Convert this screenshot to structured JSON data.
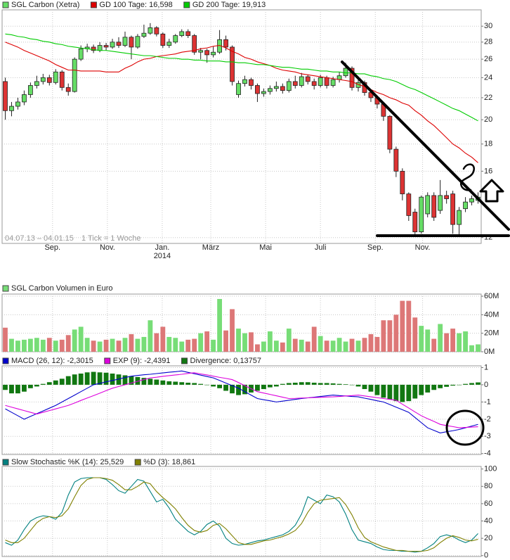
{
  "chart_data": [
    {
      "type": "candlestick",
      "log_scale": true,
      "grid": true,
      "xlim": [
        -0.5,
        75.5
      ],
      "xticks": [
        {
          "value": 7.5,
          "label": "Sep."
        },
        {
          "value": 16.2,
          "label": "Nov."
        },
        {
          "value": 24.9,
          "label": "Jan."
        },
        {
          "value": 32.6,
          "label": "März"
        },
        {
          "value": 41.3,
          "label": "Mai"
        },
        {
          "value": 50.0,
          "label": "Juli"
        },
        {
          "value": 58.7,
          "label": "Sep."
        },
        {
          "value": 66.2,
          "label": "Nov."
        }
      ],
      "year_labels": [
        {
          "value": 24.9,
          "label": "2014"
        }
      ],
      "range_note": "04.07.13 – 04.01.15",
      "tick_note": "1 Tick = 1 Woche",
      "ylim": [
        11.7,
        32.2
      ],
      "yticks": [
        12,
        16,
        18,
        20,
        22,
        24,
        26,
        28,
        30
      ],
      "series": [
        {
          "name": "SGL Carbon (Xetra)",
          "style": "candle",
          "color": "#66dd66",
          "down_color": "#dd3333",
          "open": [
            23.6,
            20.8,
            21.2,
            21.6,
            22.3,
            23.2,
            23.6,
            24.0,
            23.5,
            24.6,
            23.0,
            22.6,
            26.0,
            27.2,
            27.4,
            27.0,
            27.6,
            27.4,
            28.0,
            27.6,
            28.6,
            27.4,
            28.7,
            29.1,
            29.8,
            29.0,
            27.6,
            28.0,
            28.8,
            29.3,
            28.8,
            26.8,
            27.0,
            26.5,
            26.8,
            28.3,
            27.4,
            22.3,
            23.4,
            23.8,
            23.2,
            22.4,
            22.6,
            22.9,
            23.1,
            22.7,
            23.6,
            23.2,
            24.1,
            23.6,
            23.2,
            24.0,
            23.2,
            23.8,
            24.2,
            25.0,
            23.0,
            23.5,
            22.5,
            22.0,
            21.4,
            20.3,
            17.6,
            16.0,
            14.5,
            13.4,
            12.3,
            13.3,
            14.4,
            13.5,
            14.4,
            14.5,
            12.7,
            13.6,
            14.0,
            14.1
          ],
          "high": [
            24.0,
            21.6,
            22.0,
            22.7,
            23.5,
            24.2,
            24.4,
            24.3,
            24.9,
            24.8,
            23.4,
            26.2,
            27.6,
            27.8,
            27.7,
            28.0,
            27.9,
            28.4,
            28.6,
            29.3,
            28.8,
            29.0,
            30.2,
            30.4,
            30.0,
            29.2,
            28.4,
            29.0,
            29.6,
            29.6,
            29.0,
            27.3,
            27.2,
            27.5,
            29.5,
            28.8,
            27.6,
            23.7,
            24.2,
            24.0,
            23.4,
            22.9,
            23.2,
            23.6,
            23.4,
            23.9,
            24.2,
            24.5,
            24.3,
            23.9,
            24.3,
            24.2,
            24.1,
            24.6,
            25.6,
            25.2,
            23.8,
            23.7,
            22.8,
            22.2,
            21.6,
            20.4,
            17.8,
            16.2,
            14.6,
            13.6,
            14.4,
            14.6,
            14.6,
            15.4,
            14.7,
            14.7,
            13.7,
            14.3,
            14.4,
            14.6
          ],
          "low": [
            20.0,
            20.3,
            20.9,
            21.3,
            22.0,
            22.9,
            23.3,
            23.2,
            23.3,
            22.7,
            22.2,
            22.5,
            25.8,
            26.8,
            26.7,
            26.8,
            27.0,
            27.2,
            27.3,
            27.4,
            26.0,
            27.2,
            28.5,
            28.9,
            28.7,
            27.3,
            27.3,
            27.8,
            28.6,
            28.5,
            26.5,
            26.0,
            25.6,
            26.2,
            26.6,
            27.0,
            23.2,
            22.0,
            23.1,
            22.8,
            21.6,
            22.1,
            22.3,
            22.6,
            22.4,
            22.5,
            22.9,
            23.0,
            23.3,
            22.8,
            23.0,
            22.9,
            23.0,
            23.5,
            24.0,
            22.7,
            22.6,
            22.2,
            21.6,
            21.0,
            19.9,
            17.3,
            15.6,
            14.1,
            12.9,
            12.1,
            12.2,
            13.1,
            12.9,
            13.3,
            13.9,
            12.2,
            12.1,
            13.4,
            13.8,
            13.9
          ],
          "close": [
            20.8,
            21.2,
            21.6,
            22.3,
            23.2,
            23.6,
            24.0,
            23.5,
            24.6,
            23.0,
            22.6,
            26.0,
            27.2,
            27.4,
            27.0,
            27.6,
            27.4,
            28.0,
            27.6,
            28.6,
            27.4,
            28.7,
            29.1,
            29.8,
            29.0,
            27.6,
            28.0,
            28.8,
            29.3,
            28.8,
            26.8,
            27.0,
            26.5,
            26.8,
            28.3,
            27.4,
            23.6,
            23.4,
            23.8,
            23.2,
            22.4,
            22.6,
            22.9,
            23.1,
            22.7,
            23.6,
            23.2,
            24.1,
            23.6,
            23.2,
            24.0,
            23.2,
            23.8,
            24.2,
            25.0,
            23.0,
            23.5,
            22.5,
            22.0,
            21.4,
            20.3,
            17.6,
            16.0,
            14.5,
            13.2,
            12.3,
            14.3,
            14.4,
            13.1,
            14.4,
            14.2,
            12.7,
            13.5,
            14.0,
            14.2,
            14.3
          ]
        },
        {
          "name": "GD 100 Tage: 16,598",
          "style": "line",
          "color": "#dd0000",
          "values": [
            28.0,
            27.7,
            27.4,
            27.0,
            26.7,
            26.4,
            26.1,
            25.8,
            25.4,
            25.1,
            24.8,
            24.8,
            24.7,
            24.7,
            24.7,
            24.7,
            24.6,
            24.6,
            24.6,
            25.0,
            25.3,
            25.7,
            26.0,
            26.1,
            26.3,
            26.4,
            26.5,
            26.6,
            26.8,
            26.9,
            27.0,
            27.2,
            27.3,
            27.5,
            27.6,
            27.3,
            26.9,
            26.6,
            26.2,
            26.0,
            25.7,
            25.5,
            25.3,
            25.0,
            24.8,
            24.7,
            24.6,
            24.4,
            24.3,
            24.2,
            24.1,
            24.0,
            23.9,
            23.8,
            23.7,
            23.6,
            23.3,
            23.1,
            22.8,
            22.5,
            22.3,
            22.0,
            21.8,
            21.5,
            21.3,
            20.8,
            20.4,
            19.9,
            19.5,
            19.0,
            18.5,
            18.0,
            17.7,
            17.3,
            17.0,
            16.6
          ]
        },
        {
          "name": "GD 200 Tage: 19,913",
          "style": "line",
          "color": "#00cc00",
          "values": [
            29.0,
            28.9,
            28.7,
            28.6,
            28.4,
            28.3,
            28.1,
            28.0,
            27.8,
            27.7,
            27.5,
            27.4,
            27.3,
            27.2,
            27.1,
            27.0,
            27.0,
            26.9,
            26.8,
            26.7,
            26.6,
            26.5,
            26.4,
            26.4,
            26.3,
            26.2,
            26.1,
            26.1,
            26.0,
            26.0,
            25.9,
            25.9,
            25.8,
            25.8,
            25.8,
            25.7,
            25.7,
            25.6,
            25.6,
            25.5,
            25.4,
            25.4,
            25.3,
            25.2,
            25.1,
            25.1,
            25.0,
            24.9,
            24.9,
            24.8,
            24.7,
            24.7,
            24.6,
            24.6,
            24.5,
            24.5,
            24.4,
            24.4,
            24.2,
            24.1,
            23.9,
            23.8,
            23.6,
            23.3,
            23.0,
            22.8,
            22.5,
            22.2,
            21.9,
            21.6,
            21.3,
            21.0,
            20.8,
            20.5,
            20.2,
            19.9
          ]
        }
      ]
    },
    {
      "type": "bar",
      "grid": true,
      "xlim": [
        -0.5,
        75.5
      ],
      "ylim": [
        0,
        62.3
      ],
      "yticks": [
        {
          "value": 0,
          "label": "0M"
        },
        {
          "value": 20,
          "label": "20M"
        },
        {
          "value": 40,
          "label": "40M"
        },
        {
          "value": 60,
          "label": "60M"
        }
      ],
      "series": [
        {
          "name": "SGL Carbon Volumen in Euro",
          "style": "bar",
          "color": "#77dd77",
          "down_color": "#dd7777",
          "values": [
            26,
            14,
            12,
            13,
            14,
            15,
            13,
            15,
            12,
            13,
            18,
            24,
            27,
            15,
            12,
            11,
            13,
            14,
            12,
            15,
            19,
            14,
            16,
            34,
            20,
            27,
            16,
            15,
            11,
            13,
            14,
            20,
            22,
            13,
            57,
            23,
            46,
            25,
            20,
            21,
            8,
            11,
            22,
            12,
            10,
            25,
            14,
            13,
            11,
            27,
            17,
            12,
            12,
            15,
            11,
            14,
            12,
            15,
            19,
            16,
            34,
            34,
            40,
            55,
            55,
            37,
            28,
            24,
            14,
            30,
            20,
            25,
            20,
            22,
            7,
            8
          ]
        }
      ]
    },
    {
      "type": "line",
      "grid": true,
      "xlim": [
        -0.5,
        75.5
      ],
      "ylim": [
        -4.05,
        1.1
      ],
      "yticks": [
        -4,
        -3,
        -2,
        -1,
        0,
        1
      ],
      "series": [
        {
          "name": "MACD (26, 12): -2,3015",
          "style": "line",
          "color": "#0000cc",
          "values": [
            -1.4,
            -1.6,
            -1.8,
            -2.0,
            -1.84,
            -1.68,
            -1.52,
            -1.36,
            -1.2,
            -1.0,
            -0.8,
            -0.6,
            -0.4,
            -0.2,
            0,
            0.08,
            0.17,
            0.25,
            0.33,
            0.42,
            0.5,
            0.54,
            0.58,
            0.61,
            0.65,
            0.69,
            0.73,
            0.76,
            0.8,
            0.72,
            0.64,
            0.56,
            0.48,
            0.4,
            0.25,
            0.1,
            -0.05,
            -0.2,
            -0.4,
            -0.6,
            -0.8,
            -0.87,
            -0.93,
            -1.0,
            -0.95,
            -0.9,
            -0.85,
            -0.8,
            -0.76,
            -0.72,
            -0.68,
            -0.64,
            -0.6,
            -0.63,
            -0.65,
            -0.68,
            -0.7,
            -0.78,
            -0.85,
            -0.93,
            -1.0,
            -1.15,
            -1.3,
            -1.45,
            -1.6,
            -1.9,
            -2.2,
            -2.5,
            -2.65,
            -2.8,
            -2.73,
            -2.67,
            -2.6,
            -2.5,
            -2.4,
            -2.3015
          ]
        },
        {
          "name": "EXP (9): -2,4391",
          "style": "line",
          "color": "#dd00dd",
          "values": [
            -1.2,
            -1.3,
            -1.4,
            -1.5,
            -1.6,
            -1.7,
            -1.6,
            -1.5,
            -1.4,
            -1.3,
            -1.2,
            -1.06,
            -0.91,
            -0.77,
            -0.63,
            -0.49,
            -0.34,
            -0.2,
            -0.1,
            0,
            0.1,
            0.2,
            0.3,
            0.4,
            0.44,
            0.49,
            0.53,
            0.57,
            0.61,
            0.66,
            0.7,
            0.63,
            0.57,
            0.5,
            0.43,
            0.37,
            0.3,
            0.13,
            -0.05,
            -0.23,
            -0.4,
            -0.48,
            -0.56,
            -0.64,
            -0.72,
            -0.8,
            -0.79,
            -0.77,
            -0.76,
            -0.74,
            -0.73,
            -0.71,
            -0.7,
            -0.68,
            -0.65,
            -0.63,
            -0.6,
            -0.65,
            -0.7,
            -0.75,
            -0.8,
            -0.85,
            -0.9,
            -1.13,
            -1.35,
            -1.58,
            -1.8,
            -1.97,
            -2.13,
            -2.3,
            -2.37,
            -2.43,
            -2.5,
            -2.48,
            -2.46,
            -2.4391
          ]
        },
        {
          "name": "Divergence: 0,13757",
          "style": "bar",
          "color": "#117711",
          "values": [
            -0.3,
            -0.5,
            -0.5,
            -0.4,
            -0.2,
            -0.1,
            0.05,
            0.15,
            0.25,
            0.35,
            0.5,
            0.6,
            0.65,
            0.72,
            0.75,
            0.72,
            0.7,
            0.65,
            0.6,
            0.55,
            0.5,
            0.45,
            0.4,
            0.35,
            0.3,
            0.25,
            0.2,
            0.18,
            0.15,
            0.12,
            0.1,
            0.05,
            0,
            -0.1,
            -0.2,
            -0.35,
            -0.5,
            -0.6,
            -0.55,
            -0.45,
            -0.35,
            -0.25,
            -0.15,
            -0.1,
            0.05,
            0.1,
            0.12,
            0.15,
            0.15,
            0.12,
            0.1,
            0.1,
            0.08,
            0.05,
            0.03,
            0,
            -0.1,
            -0.25,
            -0.4,
            -0.6,
            -0.75,
            -0.85,
            -0.95,
            -1.0,
            -0.95,
            -0.8,
            -0.6,
            -0.45,
            -0.3,
            -0.2,
            -0.12,
            -0.05,
            0,
            0.05,
            0.1,
            0.13757
          ]
        }
      ]
    },
    {
      "type": "line",
      "grid": true,
      "xlim": [
        -0.5,
        75.5
      ],
      "ylim": [
        -1,
        103
      ],
      "yticks": [
        0,
        20,
        40,
        60,
        80,
        100
      ],
      "series": [
        {
          "name": "Slow Stochastic %K (14): 25,529",
          "style": "line",
          "color": "#008080",
          "values": [
            15,
            12,
            18,
            30,
            40,
            44,
            46,
            45,
            42,
            50,
            70,
            85,
            89,
            90,
            90,
            90,
            88,
            82,
            75,
            72,
            80,
            88,
            86,
            74,
            62,
            65,
            55,
            42,
            35,
            28,
            24,
            28,
            36,
            40,
            34,
            20,
            14,
            12,
            13,
            15,
            17,
            18,
            20,
            22,
            24,
            28,
            35,
            48,
            68,
            64,
            60,
            70,
            68,
            62,
            48,
            30,
            18,
            16,
            14,
            10,
            7,
            6,
            6,
            5,
            5,
            4,
            5,
            9,
            14,
            22,
            24,
            22,
            18,
            15,
            18,
            25.529
          ]
        },
        {
          "name": "%D (3): 18,861",
          "style": "line",
          "color": "#808000",
          "values": [
            18,
            15,
            15,
            20,
            29,
            38,
            43,
            45,
            44,
            46,
            54,
            68,
            81,
            88,
            90,
            90,
            89,
            87,
            82,
            76,
            76,
            80,
            85,
            83,
            74,
            67,
            61,
            54,
            44,
            35,
            29,
            27,
            29,
            35,
            37,
            31,
            23,
            15,
            13,
            13,
            15,
            17,
            18,
            20,
            22,
            25,
            29,
            37,
            50,
            60,
            64,
            65,
            66,
            67,
            59,
            47,
            32,
            21,
            16,
            13,
            10,
            8,
            6,
            6,
            5,
            5,
            5,
            6,
            9,
            15,
            20,
            23,
            21,
            18,
            17,
            18.861
          ]
        }
      ]
    }
  ]
}
